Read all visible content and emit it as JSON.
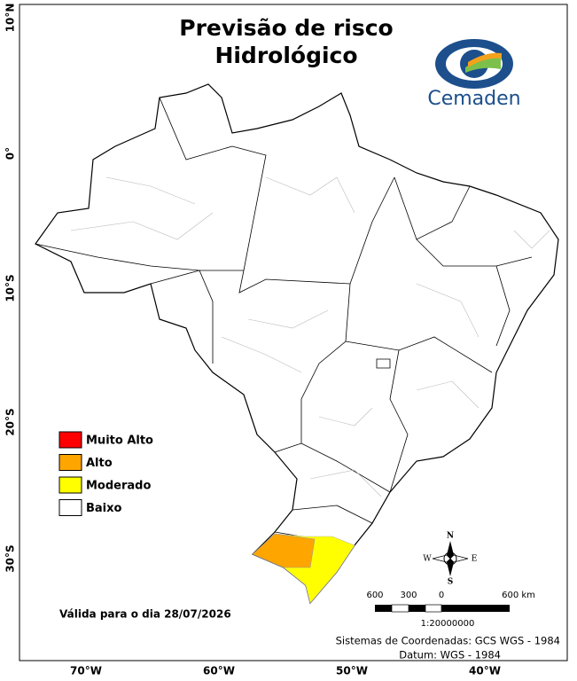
{
  "title": [
    "Previsão de risco",
    "Hidrológico"
  ],
  "logo": "Cemaden",
  "lat_labels": [
    "10°N",
    "0°",
    "10°S",
    "20°S",
    "30°S"
  ],
  "lon_labels": [
    "70°W",
    "60°W",
    "50°W",
    "40°W"
  ],
  "legend": [
    {
      "label": "Muito Alto",
      "color": "#ff0000"
    },
    {
      "label": "Alto",
      "color": "#ffa500"
    },
    {
      "label": "Moderado",
      "color": "#ffff00"
    },
    {
      "label": "Baixo",
      "color": "#ffffff"
    }
  ],
  "compass": {
    "n": "N",
    "s": "S",
    "e": "E",
    "w": "W"
  },
  "scale": {
    "labels": [
      "600",
      "300",
      "0",
      "600 km"
    ],
    "ratio": "1:20000000"
  },
  "valid": "Válida para o dia 28/07/2026",
  "footer": [
    "Sistemas de Coordenadas: GCS WGS - 1984",
    "Datum: WGS - 1984"
  ]
}
